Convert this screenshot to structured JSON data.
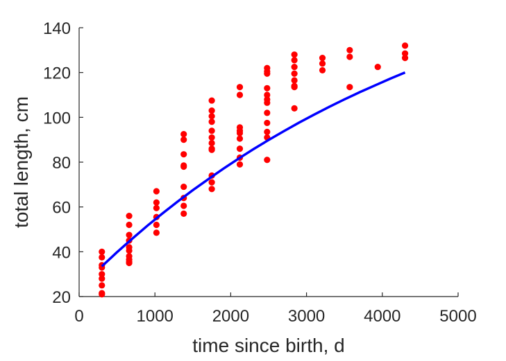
{
  "chart_data": {
    "type": "scatter",
    "title": "",
    "xlabel": "time since birth, d",
    "ylabel": "total length, cm",
    "xlim": [
      0,
      5000
    ],
    "ylim": [
      20,
      140
    ],
    "xticks": [
      0,
      1000,
      2000,
      3000,
      4000,
      5000
    ],
    "yticks": [
      20,
      40,
      60,
      80,
      100,
      120,
      140
    ],
    "grid": false,
    "legend": "none",
    "colors": {
      "points": "#ff0000",
      "fit": "#0000ff",
      "axis": "#262626"
    },
    "series": [
      {
        "kind": "scatter",
        "x": [
          300,
          300,
          300,
          300,
          300,
          300,
          300,
          300,
          300,
          660,
          660,
          660,
          660,
          660,
          660,
          660,
          660,
          660,
          660,
          1020,
          1020,
          1020,
          1020,
          1020,
          1020,
          1380,
          1380,
          1380,
          1380,
          1380,
          1380,
          1380,
          1380,
          1380,
          1750,
          1750,
          1750,
          1750,
          1750,
          1750,
          1750,
          1750,
          1750,
          1750,
          1750,
          1750,
          2120,
          2120,
          2120,
          2120,
          2120,
          2120,
          2120,
          2120,
          2120,
          2480,
          2480,
          2480,
          2480,
          2480,
          2480,
          2480,
          2480,
          2480,
          2480,
          2480,
          2480,
          2840,
          2840,
          2840,
          2840,
          2840,
          2840,
          2840,
          2840,
          3210,
          3210,
          3210,
          3570,
          3570,
          3570,
          3940,
          4300,
          4300,
          4300
        ],
        "y": [
          40,
          37.5,
          33,
          30,
          28,
          25,
          21.5,
          21,
          34,
          56,
          52,
          47.5,
          45,
          42,
          40.5,
          38,
          36.5,
          35.5,
          35,
          67,
          62,
          59.5,
          55.5,
          52,
          48.5,
          92.5,
          90,
          83.5,
          78,
          69,
          64,
          60.5,
          57,
          78.5,
          107.5,
          103,
          100.5,
          98,
          94,
          91,
          88.5,
          86,
          74,
          71,
          68,
          85.5,
          113.5,
          110,
          95.5,
          93,
          90.5,
          86,
          82,
          79,
          94,
          122,
          120.5,
          119.5,
          113,
          110,
          108,
          106.5,
          102,
          97.5,
          93.5,
          91,
          81,
          128,
          125.5,
          122.5,
          119.5,
          116.5,
          114,
          113.5,
          104,
          126.5,
          124,
          121,
          130,
          127,
          113.5,
          122.5,
          132,
          128.5,
          126.5
        ]
      },
      {
        "kind": "line",
        "x": [
          300,
          500,
          700,
          900,
          1100,
          1300,
          1500,
          1700,
          1900,
          2100,
          2300,
          2500,
          2700,
          2900,
          3100,
          3300,
          3500,
          3700,
          3900,
          4100,
          4300
        ],
        "y": [
          33.5,
          39.8,
          45.8,
          51.6,
          57.1,
          62.4,
          67.5,
          72.3,
          77.0,
          81.5,
          85.8,
          89.9,
          93.8,
          97.6,
          101.2,
          104.7,
          108.0,
          111.2,
          114.2,
          117.2,
          120.0
        ]
      }
    ]
  }
}
